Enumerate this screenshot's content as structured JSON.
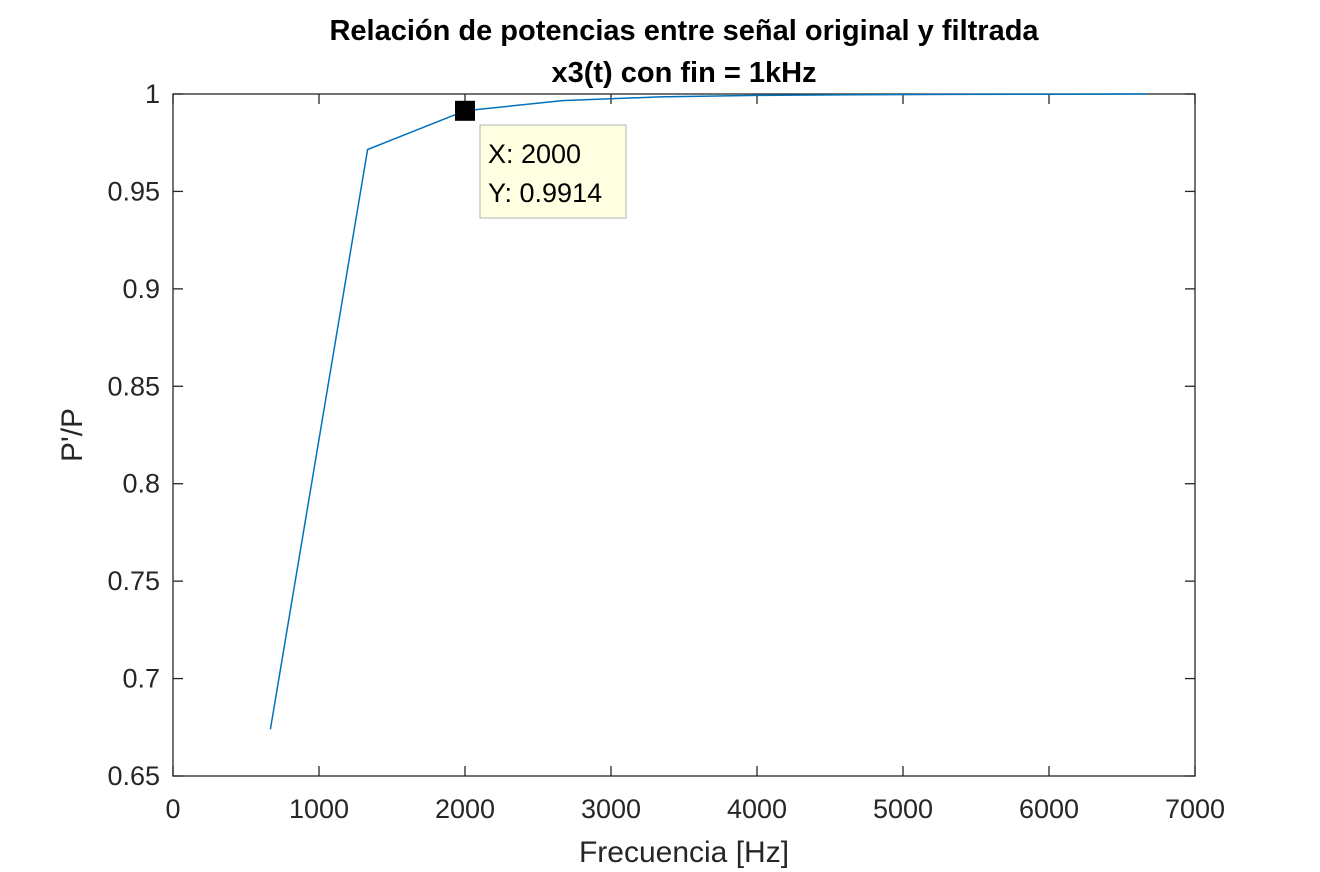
{
  "chart_data": {
    "type": "line",
    "title": "Relación de potencias entre señal original y filtrada",
    "subtitle": "x3(t) con fin = 1kHz",
    "xlabel": "Frecuencia [Hz]",
    "ylabel": "P'/P",
    "xlim": [
      0,
      7000
    ],
    "ylim": [
      0.65,
      1
    ],
    "xticks": [
      0,
      1000,
      2000,
      3000,
      4000,
      5000,
      6000,
      7000
    ],
    "xtick_labels": [
      "0",
      "1000",
      "2000",
      "3000",
      "4000",
      "5000",
      "6000",
      "7000"
    ],
    "yticks": [
      0.65,
      0.7,
      0.75,
      0.8,
      0.85,
      0.9,
      0.95,
      1
    ],
    "ytick_labels": [
      "0.65",
      "0.7",
      "0.75",
      "0.8",
      "0.85",
      "0.9",
      "0.95",
      "1"
    ],
    "grid": false,
    "line_color": "#0072BD",
    "series": [
      {
        "x": [
          667,
          1333,
          2000,
          2667,
          3333,
          4000,
          4667,
          5333,
          6000,
          6667
        ],
        "y": [
          0.674,
          0.9715,
          0.9914,
          0.9966,
          0.9985,
          0.9993,
          0.9996,
          0.9998,
          0.9999,
          1.0
        ]
      }
    ],
    "datatip": {
      "x": 2000,
      "y": 0.9914,
      "x_text": "X: 2000",
      "y_text": "Y: 0.9914"
    }
  }
}
